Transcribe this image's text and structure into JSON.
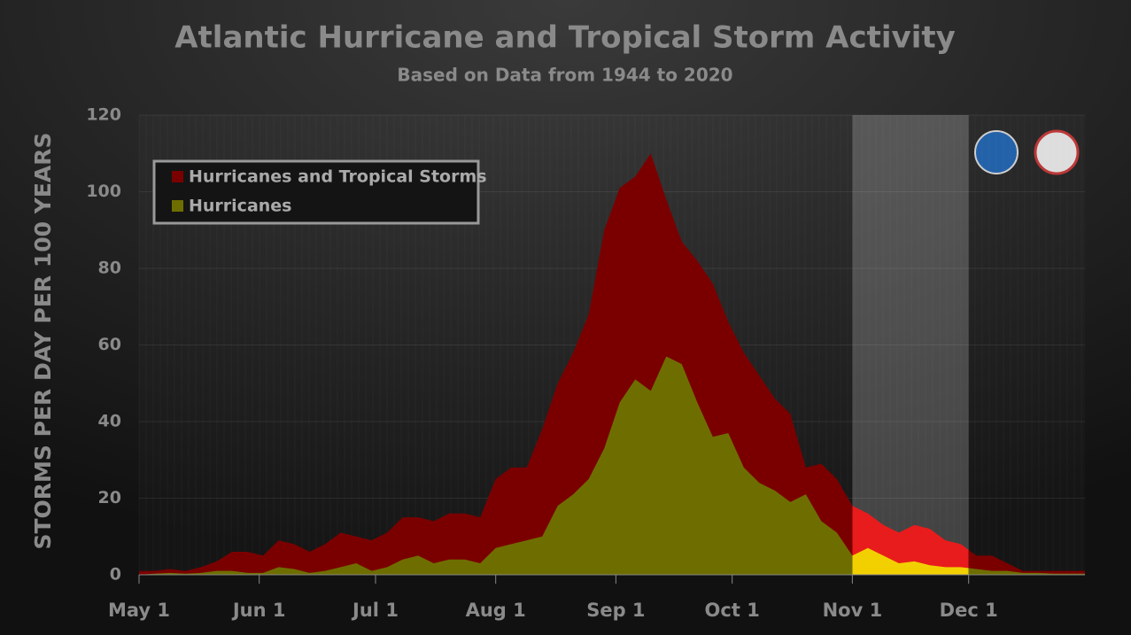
{
  "chart_data": {
    "type": "area",
    "title": "Atlantic Hurricane and Tropical Storm Activity",
    "subtitle": "Based on Data from 1944 to 2020",
    "y_label": "STORMS PER DAY PER 100 YEARS",
    "x": [
      0,
      4,
      8,
      12,
      16,
      20,
      24,
      28,
      32,
      36,
      40,
      44,
      48,
      52,
      56,
      60,
      64,
      68,
      72,
      76,
      80,
      84,
      88,
      92,
      96,
      100,
      104,
      108,
      112,
      116,
      120,
      124,
      128,
      132,
      136,
      140,
      144,
      148,
      152,
      156,
      160,
      164,
      168,
      172,
      176,
      180,
      184,
      188,
      192,
      196,
      200,
      204,
      208,
      212,
      216,
      220,
      224,
      228,
      232,
      236,
      240,
      244
    ],
    "series": [
      {
        "name": "Hurricanes and Tropical Storms",
        "color": "#7a0000",
        "highlight_color": "#e81c1c",
        "values": [
          1,
          1,
          1.5,
          1,
          2,
          3.5,
          6,
          6,
          5,
          9,
          8,
          6,
          8,
          11,
          10,
          9,
          11,
          15,
          15,
          14,
          16,
          16,
          15,
          25,
          28,
          28,
          38,
          50,
          58,
          68,
          90,
          101,
          104,
          110,
          98,
          87,
          82,
          76,
          66,
          58,
          52,
          46,
          42,
          28,
          29,
          25,
          18,
          16,
          13,
          11,
          13,
          12,
          9,
          8,
          5,
          5,
          3,
          1,
          1,
          1,
          1,
          1
        ]
      },
      {
        "name": "Hurricanes",
        "color": "#6e6e00",
        "highlight_color": "#f2d000",
        "values": [
          0,
          0.3,
          0.5,
          0.3,
          0.5,
          1,
          1,
          0.5,
          0.5,
          2,
          1.5,
          0.5,
          1,
          2,
          3,
          1,
          2,
          4,
          5,
          3,
          4,
          4,
          3,
          7,
          8,
          9,
          10,
          18,
          21,
          25,
          33,
          45,
          51,
          48,
          57,
          55,
          45,
          36,
          37,
          28,
          24,
          22,
          19,
          21,
          14,
          11,
          5,
          7,
          5,
          3,
          3.5,
          2.5,
          2,
          2,
          1.5,
          1,
          1,
          0.5,
          0.5,
          0.3,
          0.3,
          0.3
        ]
      }
    ],
    "xlim": [
      0,
      244
    ],
    "xticks": [
      {
        "value": 0,
        "label": "May 1"
      },
      {
        "value": 31,
        "label": "Jun 1"
      },
      {
        "value": 61,
        "label": "Jul 1"
      },
      {
        "value": 92,
        "label": "Aug 1"
      },
      {
        "value": 123,
        "label": "Sep 1"
      },
      {
        "value": 153,
        "label": "Oct 1"
      },
      {
        "value": 184,
        "label": "Nov 1"
      },
      {
        "value": 214,
        "label": "Dec 1"
      }
    ],
    "ylim": [
      0,
      120
    ],
    "yticks": [
      0,
      20,
      40,
      60,
      80,
      100,
      120
    ],
    "highlight_xlim": [
      184,
      214
    ],
    "grid": true,
    "legend": "upper left"
  }
}
